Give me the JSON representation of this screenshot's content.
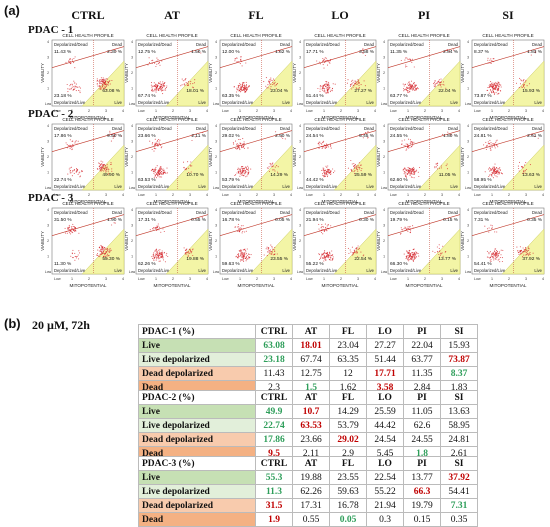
{
  "panel_a_label": "(a)",
  "panel_b_label": "(b)",
  "condition": "20 µM, 72h",
  "plot_title": "CELL HEALTH PROFILE",
  "x_axis_label": "MITOPOTENTIAL",
  "y_axis_label": "VIABILITY",
  "quadrant_labels": {
    "tl": "Depolarized/Dead",
    "tr": "Dead",
    "bl": "Depolarized/Live",
    "br": "Live"
  },
  "colors": {
    "scatter": "#d4232a",
    "gate": "#f3f5a6",
    "gate_border": "#c9c95a",
    "quad_line": "#c0392b",
    "green": "#2e9e5a",
    "red": "#c00000"
  },
  "chart_data": {
    "type": "table",
    "columns": [
      "CTRL",
      "AT",
      "FL",
      "LO",
      "PI",
      "SI"
    ],
    "row_labels": [
      "Live",
      "Live depolarized",
      "Dead depolarized",
      "Dead"
    ],
    "tables": [
      {
        "name": "PDAC-1",
        "header": "PDAC-1 (%)",
        "rows": [
          [
            "63.08",
            "18.01",
            "23.04",
            "27.27",
            "22.04",
            "15.93"
          ],
          [
            "23.18",
            "67.74",
            "63.35",
            "51.44",
            "63.77",
            "73.87"
          ],
          [
            "11.43",
            "12.75",
            "12",
            "17.71",
            "11.35",
            "8.37"
          ],
          [
            "2.3",
            "1.5",
            "1.62",
            "3.58",
            "2.84",
            "1.83"
          ]
        ],
        "highlights": [
          [
            "g",
            "r",
            "",
            "",
            "",
            ""
          ],
          [
            "g",
            "",
            "",
            "",
            "",
            "r"
          ],
          [
            "",
            "",
            "",
            "r",
            "",
            "g"
          ],
          [
            "",
            "g",
            "",
            "r",
            "",
            ""
          ]
        ]
      },
      {
        "name": "PDAC-2",
        "header": "PDAC-2 (%)",
        "rows": [
          [
            "49.9",
            "10.7",
            "14.29",
            "25.59",
            "11.05",
            "13.63"
          ],
          [
            "22.74",
            "63.53",
            "53.79",
            "44.42",
            "62.6",
            "58.95"
          ],
          [
            "17.86",
            "23.66",
            "29.02",
            "24.54",
            "24.55",
            "24.81"
          ],
          [
            "9.5",
            "2.11",
            "2.9",
            "5.45",
            "1.8",
            "2.61"
          ]
        ],
        "highlights": [
          [
            "g",
            "r",
            "",
            "",
            "",
            ""
          ],
          [
            "g",
            "r",
            "",
            "",
            "",
            ""
          ],
          [
            "g",
            "",
            "r",
            "",
            "",
            ""
          ],
          [
            "r",
            "",
            "",
            "",
            "g",
            ""
          ]
        ]
      },
      {
        "name": "PDAC-3",
        "header": "PDAC-3 (%)",
        "rows": [
          [
            "55.3",
            "19.88",
            "23.55",
            "22.54",
            "13.77",
            "37.92"
          ],
          [
            "11.3",
            "62.26",
            "59.63",
            "55.22",
            "66.3",
            "54.41"
          ],
          [
            "31.5",
            "17.31",
            "16.78",
            "21.94",
            "19.79",
            "7.31"
          ],
          [
            "1.9",
            "0.55",
            "0.05",
            "0.3",
            "0.15",
            "0.35"
          ]
        ],
        "highlights": [
          [
            "g",
            "",
            "",
            "",
            "",
            "r"
          ],
          [
            "g",
            "",
            "",
            "",
            "r",
            ""
          ],
          [
            "r",
            "",
            "",
            "",
            "",
            "g"
          ],
          [
            "r",
            "",
            "g",
            "",
            "",
            ""
          ]
        ]
      }
    ],
    "flow_plots": [
      {
        "row": "PDAC - 1",
        "panels": [
          {
            "tl": "11.43 %",
            "tr": "2.30 %",
            "bl": "23.18 %",
            "br": "63.08 %"
          },
          {
            "tl": "12.75 %",
            "tr": "1.50 %",
            "bl": "67.74 %",
            "br": "18.01 %"
          },
          {
            "tl": "12.00 %",
            "tr": "1.62 %",
            "bl": "63.35 %",
            "br": "23.04 %"
          },
          {
            "tl": "17.71 %",
            "tr": "3.58 %",
            "bl": "51.44 %",
            "br": "27.27 %"
          },
          {
            "tl": "11.35 %",
            "tr": "2.84 %",
            "bl": "63.77 %",
            "br": "22.04 %"
          },
          {
            "tl": "8.37 %",
            "tr": "1.83 %",
            "bl": "73.87 %",
            "br": "15.93 %"
          }
        ]
      },
      {
        "row": "PDAC - 2",
        "panels": [
          {
            "tl": "17.86 %",
            "tr": "9.50 %",
            "bl": "22.74 %",
            "br": "49.90 %"
          },
          {
            "tl": "23.66 %",
            "tr": "2.11 %",
            "bl": "63.53 %",
            "br": "10.70 %"
          },
          {
            "tl": "29.02 %",
            "tr": "2.90 %",
            "bl": "53.79 %",
            "br": "14.29 %"
          },
          {
            "tl": "24.54 %",
            "tr": "5.45 %",
            "bl": "44.42 %",
            "br": "25.59 %"
          },
          {
            "tl": "24.55 %",
            "tr": "1.80 %",
            "bl": "62.60 %",
            "br": "11.05 %"
          },
          {
            "tl": "24.81 %",
            "tr": "2.61 %",
            "bl": "58.95 %",
            "br": "13.63 %"
          }
        ]
      },
      {
        "row": "PDAC - 3",
        "panels": [
          {
            "tl": "31.50 %",
            "tr": "1.90 %",
            "bl": "11.30 %",
            "br": "55.30 %"
          },
          {
            "tl": "17.31 %",
            "tr": "0.55 %",
            "bl": "62.26 %",
            "br": "19.88 %"
          },
          {
            "tl": "16.78 %",
            "tr": "0.05 %",
            "bl": "59.63 %",
            "br": "23.55 %"
          },
          {
            "tl": "21.94 %",
            "tr": "0.30 %",
            "bl": "55.22 %",
            "br": "22.54 %"
          },
          {
            "tl": "19.79 %",
            "tr": "0.15 %",
            "bl": "66.30 %",
            "br": "13.77 %"
          },
          {
            "tl": "7.31 %",
            "tr": "0.35 %",
            "bl": "54.41 %",
            "br": "37.92 %"
          }
        ]
      }
    ]
  }
}
